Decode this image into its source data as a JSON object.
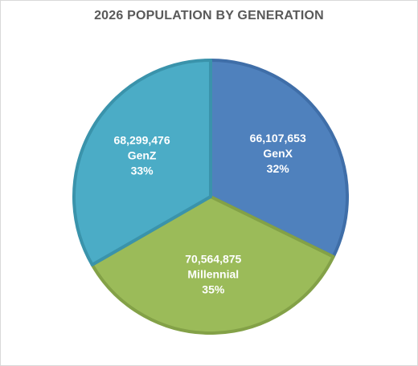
{
  "chart_data": {
    "type": "pie",
    "title": "2026 POPULATION BY GENERATION",
    "start": "top",
    "direction": "clockwise",
    "legend": "none",
    "slices": [
      {
        "name": "GenX",
        "value": 66107653,
        "value_label": "66,107,653",
        "percent_label": "32%",
        "color": "#4f81bd",
        "border": "#3f6ea8"
      },
      {
        "name": "Millennial",
        "value": 70564875,
        "value_label": "70,564,875",
        "percent_label": "35%",
        "color": "#9bbb59",
        "border": "#83a147"
      },
      {
        "name": "GenZ",
        "value": 68299476,
        "value_label": "68,299,476",
        "percent_label": "33%",
        "color": "#4bacc6",
        "border": "#3a93ab"
      }
    ]
  }
}
